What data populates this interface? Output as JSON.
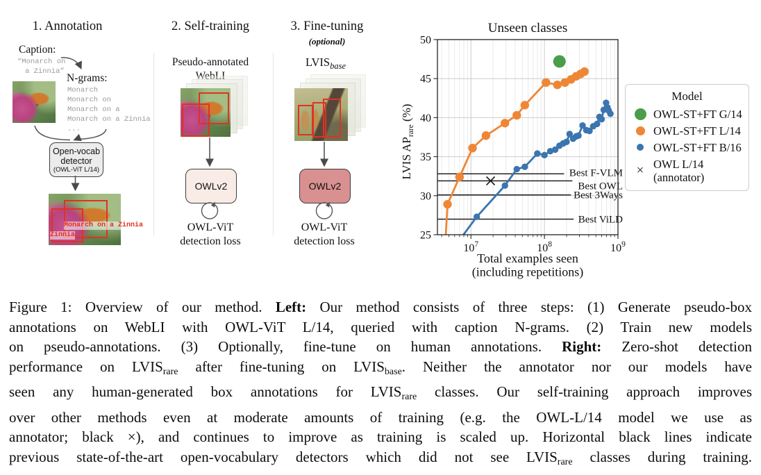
{
  "diagram": {
    "step1": {
      "title": "1. Annotation",
      "caption_label": "Caption:",
      "caption_text_lines": [
        "“Monarch on",
        "a Zinnia”"
      ],
      "ngrams_label": "N-grams:",
      "ngrams": [
        "Monarch",
        "Monarch on",
        "Monarch on a",
        "Monarch on a Zinnia",
        "..."
      ],
      "detector_box_lines": [
        "Open-vocab",
        "detector"
      ],
      "detector_box_sub": "(OWL-ViT L/14)",
      "prediction_labels": [
        "Monarch on a Zinnia",
        "Zinnia"
      ]
    },
    "step2": {
      "title": "2. Self-training",
      "dataset_lines": [
        "Pseudo-annotated",
        "WebLI"
      ],
      "model_label": "OWLv2",
      "loss_lines": [
        "OWL-ViT",
        "detection loss"
      ]
    },
    "step3": {
      "title": "3. Fine-tuning",
      "subtitle": "(optional)",
      "dataset_name": "LVIS",
      "dataset_sub": "base",
      "model_label": "OWLv2",
      "loss_lines": [
        "OWL-ViT",
        "detection loss"
      ]
    },
    "colors": {
      "annotation_red": "#e03222",
      "model_box_light": "#f9ebe6",
      "model_box_dark": "#d99090",
      "detector_box_gray": "#ececec"
    }
  },
  "chart_data": {
    "type": "line",
    "title": "Unseen classes",
    "xlabel_lines": [
      "Total examples seen",
      "(including repetitions)"
    ],
    "ylabel": {
      "main": "LVIS AP",
      "sub": "rare",
      "suffix": " (%)"
    },
    "xscale": "log",
    "xlim": [
      3500000.0,
      1000000000.0
    ],
    "ylim": [
      25,
      50
    ],
    "yticks": [
      25,
      30,
      35,
      40,
      45,
      50
    ],
    "xticks": [
      {
        "base": "10",
        "exp": "7",
        "value": 10000000.0
      },
      {
        "base": "10",
        "exp": "8",
        "value": 100000000.0
      },
      {
        "base": "10",
        "exp": "9",
        "value": 1000000000.0
      }
    ],
    "grid": true,
    "series": [
      {
        "name": "OWL-ST+FT L/14",
        "color": "#ef8636",
        "marker": "circle",
        "marker_r": 6.2,
        "line": true,
        "points": [
          [
            4500000.0,
            24.2
          ],
          [
            4800000.0,
            28.9
          ],
          [
            7000000.0,
            32.4
          ],
          [
            10500000.0,
            36.1
          ],
          [
            16000000.0,
            37.7
          ],
          [
            29000000.0,
            39.3
          ],
          [
            42000000.0,
            40.3
          ],
          [
            54000000.0,
            41.6
          ],
          [
            105000000.0,
            44.5
          ],
          [
            150000000.0,
            44.2
          ],
          [
            190000000.0,
            44.5
          ],
          [
            230000000.0,
            44.9
          ],
          [
            270000000.0,
            45.3
          ],
          [
            310000000.0,
            45.6
          ],
          [
            350000000.0,
            45.9
          ]
        ]
      },
      {
        "name": "OWL-ST+FT B/16",
        "color": "#3b75af",
        "marker": "circle",
        "marker_r": 4.7,
        "line": true,
        "points": [
          [
            6600000.0,
            24.0
          ],
          [
            12000000.0,
            27.3
          ],
          [
            29000000.0,
            31.3
          ],
          [
            42000000.0,
            33.4
          ],
          [
            54000000.0,
            33.7
          ],
          [
            80000000.0,
            35.4
          ],
          [
            100000000.0,
            35.2
          ],
          [
            120000000.0,
            35.7
          ],
          [
            140000000.0,
            35.9
          ],
          [
            160000000.0,
            36.4
          ],
          [
            180000000.0,
            36.7
          ],
          [
            200000000.0,
            36.9
          ],
          [
            220000000.0,
            37.9
          ],
          [
            245000000.0,
            37.3
          ],
          [
            270000000.0,
            37.6
          ],
          [
            290000000.0,
            37.7
          ],
          [
            330000000.0,
            39.0
          ],
          [
            370000000.0,
            38.4
          ],
          [
            410000000.0,
            38.3
          ],
          [
            460000000.0,
            38.9
          ],
          [
            520000000.0,
            39.2
          ],
          [
            560000000.0,
            40.1
          ],
          [
            600000000.0,
            39.8
          ],
          [
            640000000.0,
            41.0
          ],
          [
            690000000.0,
            41.9
          ],
          [
            720000000.0,
            41.3
          ],
          [
            750000000.0,
            40.9
          ],
          [
            790000000.0,
            40.5
          ]
        ]
      },
      {
        "name": "OWL-ST+FT G/14",
        "color": "#4a9d4a",
        "marker": "circle",
        "marker_r": 9,
        "line": false,
        "points": [
          [
            160000000.0,
            47.2
          ]
        ]
      },
      {
        "name": "OWL L/14 (annotator)",
        "color": "#1a1a1a",
        "marker": "x",
        "marker_r": 6,
        "line": false,
        "points": [
          [
            18500000.0,
            31.9
          ]
        ]
      }
    ],
    "baselines": [
      {
        "label": "Best F-VLM",
        "value": 32.8,
        "x_end": 185000000.0,
        "label_offset": 3
      },
      {
        "label": "Best OWL",
        "value": 31.9,
        "x_end": 240000000.0,
        "label_offset": 12
      },
      {
        "label": "Best 3Ways",
        "value": 30.1,
        "x_end": 230000000.0,
        "label_offset": 5
      },
      {
        "label": "Best ViLD",
        "value": 27.0,
        "x_end": 250000000.0,
        "label_offset": 5
      }
    ],
    "legend": {
      "title": "Model",
      "position": "right",
      "entries": [
        {
          "marker": "circle",
          "color": "#4a9d4a",
          "size": 17,
          "label": "OWL-ST+FT G/14"
        },
        {
          "marker": "circle",
          "color": "#ef8636",
          "size": 13,
          "label": "OWL-ST+FT L/14"
        },
        {
          "marker": "circle",
          "color": "#3b75af",
          "size": 10,
          "label": "OWL-ST+FT B/16"
        },
        {
          "marker": "x",
          "color": "#1a1a1a",
          "size": 15,
          "label": "OWL L/14",
          "label2": "(annotator)"
        }
      ]
    }
  },
  "caption": {
    "lines": [
      [
        {
          "t": "Figure 1: Overview of our method. "
        },
        {
          "t": "Left:",
          "b": true
        },
        {
          "t": " Our method consists of three steps: (1) Generate pseudo-box"
        }
      ],
      [
        {
          "t": "annotations on WebLI with OWL-ViT L/14, queried with caption N-grams. (2) Train new models"
        }
      ],
      [
        {
          "t": "on pseudo-annotations. (3) Optionally, fine-tune on human annotations. "
        },
        {
          "t": "Right:",
          "b": true
        },
        {
          "t": " Zero-shot detection"
        }
      ],
      [
        {
          "t": "performance on LVIS"
        },
        {
          "t": "rare",
          "sub": true
        },
        {
          "t": " after fine-tuning on LVIS"
        },
        {
          "t": "base",
          "sub": true
        },
        {
          "t": ". Neither the annotator nor our models have"
        }
      ],
      [
        {
          "t": "seen any human-generated box annotations for LVIS"
        },
        {
          "t": "rare",
          "sub": true
        },
        {
          "t": " classes. Our self-training approach improves"
        }
      ],
      [
        {
          "t": "over other methods even at moderate amounts of training (e.g. the OWL-L/14 model we use as"
        }
      ],
      [
        {
          "t": "annotator; black ×), and continues to improve as training is scaled up. Horizontal black lines indicate"
        }
      ],
      [
        {
          "t": "previous state-of-the-art open-vocabulary detectors which did not see LVIS"
        },
        {
          "t": "rare",
          "sub": true
        },
        {
          "t": " classes during training."
        }
      ]
    ]
  }
}
